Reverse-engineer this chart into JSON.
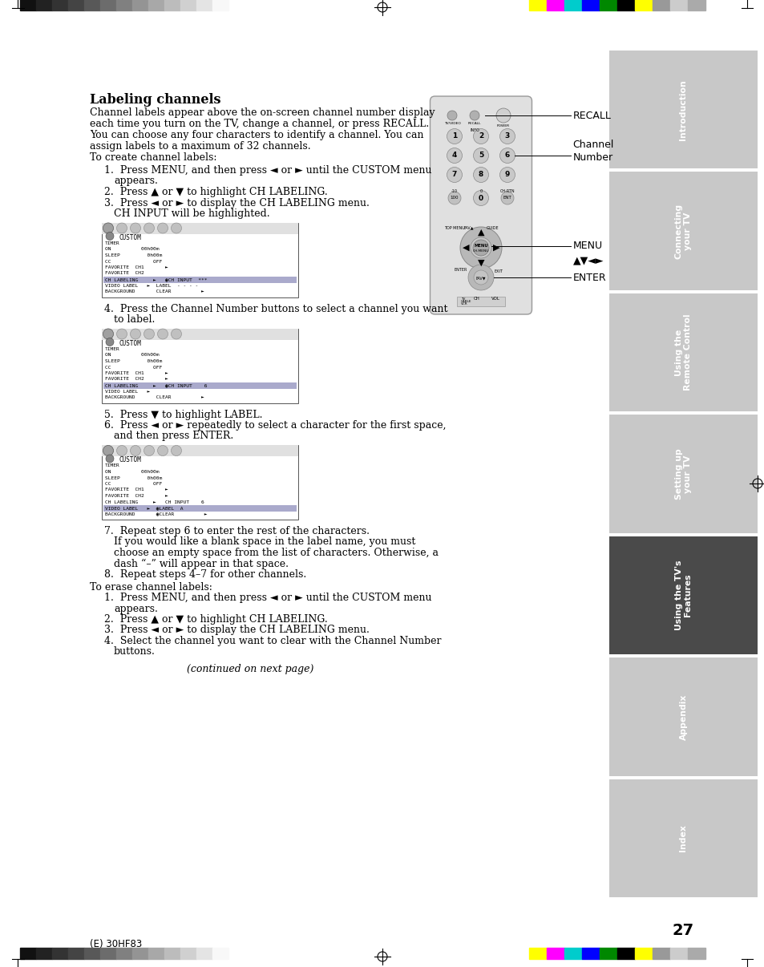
{
  "page_bg": "#ffffff",
  "sidebar_bg": "#c8c8c8",
  "sidebar_active_bg": "#4a4a4a",
  "sidebar_text_color": "#ffffff",
  "sidebar_labels": [
    "Introduction",
    "Connecting\nyour TV",
    "Using the\nRemote Control",
    "Setting up\nyour TV",
    "Using the TV's\nFeatures",
    "Appendix",
    "Index"
  ],
  "sidebar_active_index": 4,
  "title": "Labeling channels",
  "body_text_lines": [
    "Channel labels appear above the on-screen channel number display",
    "each time you turn on the TV, change a channel, or press RECALL.",
    "You can choose any four characters to identify a channel. You can",
    "assign labels to a maximum of 32 channels.",
    "To create channel labels:"
  ],
  "steps_create": [
    "1.  Press MENU, and then press ◄ or ► until the CUSTOM menu",
    "    appears.",
    "2.  Press ▲ or ▼ to highlight CH LABELING.",
    "3.  Press ◄ or ► to display the CH LABELING menu.",
    "    CH INPUT will be highlighted.",
    "MENU_BOX_1",
    "4.  Press the Channel Number buttons to select a channel you want",
    "    to label.",
    "MENU_BOX_2",
    "5.  Press ▼ to highlight LABEL.",
    "6.  Press ◄ or ► repeatedly to select a character for the first space,",
    "    and then press ENTER.",
    "MENU_BOX_3",
    "7.  Repeat step 6 to enter the rest of the characters.",
    "    If you would like a blank space in the label name, you must",
    "    choose an empty space from the list of characters. Otherwise, a",
    "    dash “–” will appear in that space.",
    "8.  Repeat steps 4–7 for other channels."
  ],
  "erase_header": "To erase channel labels:",
  "steps_erase": [
    "1.  Press MENU, and then press ◄ or ► until the CUSTOM menu",
    "    appears.",
    "2.  Press ▲ or ▼ to highlight CH LABELING.",
    "3.  Press ◄ or ► to display the CH LABELING menu.",
    "4.  Select the channel you want to clear with the Channel Number",
    "    buttons."
  ],
  "continued": "(continued on next page)",
  "page_number": "27",
  "footer_text": "(E) 30HF83",
  "recall_label": "RECALL",
  "channel_number_label": "Channel\nNumber",
  "menu_label": "MENU",
  "avl_label": "▲▼◄►",
  "enter_label": "ENTER",
  "color_bars_left": [
    "#111111",
    "#222222",
    "#333333",
    "#444444",
    "#585858",
    "#6c6c6c",
    "#808080",
    "#949494",
    "#a8a8a8",
    "#bcbcbc",
    "#d0d0d0",
    "#e4e4e4",
    "#f8f8f8"
  ],
  "color_bars_right": [
    "#ffff00",
    "#ff00ff",
    "#00cccc",
    "#0000ff",
    "#008800",
    "#000000",
    "#ffff00",
    "#999999",
    "#cccccc",
    "#aaaaaa"
  ]
}
